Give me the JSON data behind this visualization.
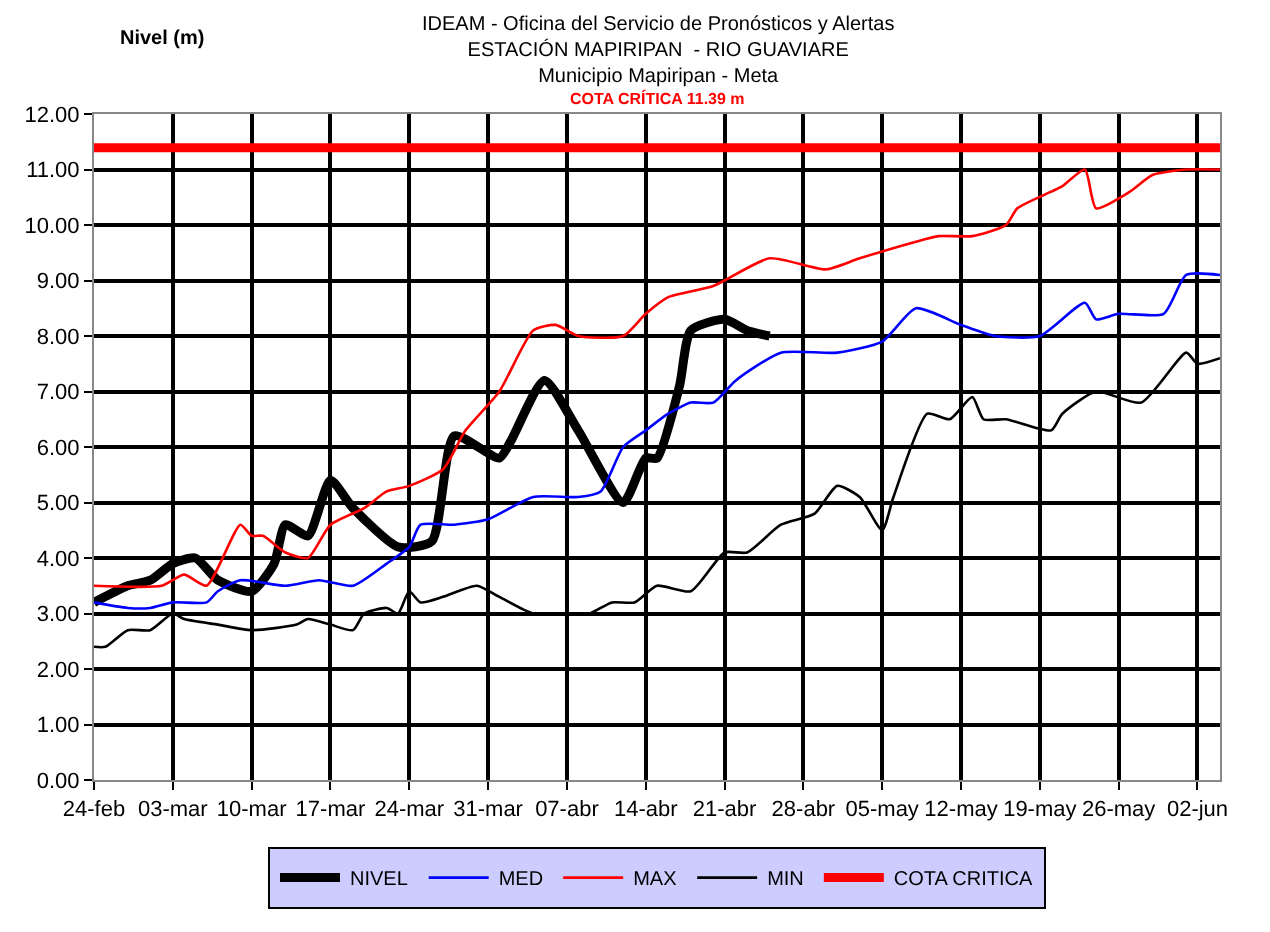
{
  "chart_data": {
    "type": "line",
    "title": "IDEAM - Oficina del Servicio de Pronósticos y Alertas",
    "subtitle": "ESTACIÓN MAPIRIPAN  - RIO GUAVIARE\nMunicipio Mapiripan - Meta",
    "ylabel": "Nivel (m)",
    "annotations": [
      "COTA CRÍTICA 11.39 m"
    ],
    "series": [
      {
        "name": "NIVEL",
        "color": "#000000",
        "x": [
          "--02-24",
          "--02-27",
          "--03-01",
          "--03-03",
          "--03-05",
          "--03-07",
          "--03-10",
          "--03-12",
          "--03-13",
          "--03-15",
          "--03-17",
          "--03-19",
          "--03-23",
          "--03-26",
          "--03-28",
          "--04-01",
          "--04-02",
          "--04-05",
          "--04-08",
          "--04-12",
          "--04-14",
          "--04-15",
          "--04-17",
          "--04-18",
          "--04-21",
          "--04-23",
          "--04-25"
        ],
        "values": [
          3.2,
          3.5,
          3.6,
          3.9,
          4.0,
          3.6,
          3.4,
          3.9,
          4.6,
          4.4,
          5.4,
          4.9,
          4.2,
          4.3,
          6.2,
          5.8,
          6.1,
          7.2,
          6.3,
          5.0,
          5.8,
          5.8,
          7.1,
          8.1,
          8.3,
          8.1,
          8.0
        ]
      },
      {
        "name": "MED",
        "color": "#0000ff",
        "x": [
          "--02-24",
          "--02-27",
          "--03-01",
          "--03-03",
          "--03-06",
          "--03-07",
          "--03-09",
          "--03-13",
          "--03-16",
          "--03-19",
          "--03-22",
          "--03-24",
          "--03-25",
          "--03-28",
          "--03-31",
          "--04-04",
          "--04-08",
          "--04-10",
          "--04-12",
          "--04-14",
          "--04-16",
          "--04-18",
          "--04-20",
          "--04-22",
          "--04-26",
          "--05-01",
          "--05-05",
          "--05-08",
          "--05-12",
          "--05-15",
          "--05-19",
          "--05-23",
          "--05-24",
          "--05-26",
          "--05-30",
          "--06-01",
          "--06-04"
        ],
        "values": [
          3.2,
          3.1,
          3.1,
          3.2,
          3.2,
          3.4,
          3.6,
          3.5,
          3.6,
          3.5,
          3.9,
          4.2,
          4.6,
          4.6,
          4.7,
          5.1,
          5.1,
          5.2,
          6.0,
          6.3,
          6.6,
          6.8,
          6.8,
          7.2,
          7.7,
          7.7,
          7.9,
          8.5,
          8.2,
          8.0,
          8.0,
          8.6,
          8.3,
          8.4,
          8.4,
          9.1,
          9.1
        ]
      },
      {
        "name": "MAX",
        "color": "#ff0000",
        "x": [
          "--02-24",
          "--03-02",
          "--03-04",
          "--03-06",
          "--03-09",
          "--03-10",
          "--03-11",
          "--03-13",
          "--03-15",
          "--03-17",
          "--03-20",
          "--03-22",
          "--03-24",
          "--03-27",
          "--03-29",
          "--04-01",
          "--04-04",
          "--04-06",
          "--04-08",
          "--04-12",
          "--04-14",
          "--04-16",
          "--04-20",
          "--04-25",
          "--04-30",
          "--05-03",
          "--05-08",
          "--05-10",
          "--05-13",
          "--05-16",
          "--05-17",
          "--05-20",
          "--05-21",
          "--05-23",
          "--05-24",
          "--05-27",
          "--05-29",
          "--06-01",
          "--06-04"
        ],
        "values": [
          3.5,
          3.5,
          3.7,
          3.5,
          4.6,
          4.4,
          4.4,
          4.1,
          4.0,
          4.6,
          4.9,
          5.2,
          5.3,
          5.6,
          6.3,
          7.0,
          8.1,
          8.2,
          8.0,
          8.0,
          8.4,
          8.7,
          8.9,
          9.4,
          9.2,
          9.4,
          9.7,
          9.8,
          9.8,
          10.0,
          10.3,
          10.6,
          10.7,
          11.0,
          10.3,
          10.6,
          10.9,
          11.0,
          11.0
        ]
      },
      {
        "name": "MIN",
        "color": "#000000",
        "x": [
          "--02-24",
          "--02-25",
          "--02-27",
          "--03-01",
          "--03-03",
          "--03-04",
          "--03-07",
          "--03-10",
          "--03-14",
          "--03-15",
          "--03-17",
          "--03-19",
          "--03-20",
          "--03-22",
          "--03-23",
          "--03-24",
          "--03-25",
          "--03-27",
          "--03-30",
          "--04-01",
          "--04-04",
          "--04-07",
          "--04-09",
          "--04-11",
          "--04-13",
          "--04-15",
          "--04-18",
          "--04-21",
          "--04-23",
          "--04-26",
          "--04-29",
          "--05-01",
          "--05-03",
          "--05-05",
          "--05-06",
          "--05-09",
          "--05-11",
          "--05-13",
          "--05-14",
          "--05-16",
          "--05-20",
          "--05-21",
          "--05-24",
          "--05-28",
          "--06-01",
          "--06-02",
          "--06-04"
        ],
        "values": [
          2.4,
          2.4,
          2.7,
          2.7,
          3.0,
          2.9,
          2.8,
          2.7,
          2.8,
          2.9,
          2.8,
          2.7,
          3.0,
          3.1,
          3.0,
          3.4,
          3.2,
          3.3,
          3.5,
          3.3,
          3.0,
          3.0,
          3.0,
          3.2,
          3.2,
          3.5,
          3.4,
          4.1,
          4.1,
          4.6,
          4.8,
          5.3,
          5.1,
          4.5,
          5.1,
          6.6,
          6.5,
          6.9,
          6.5,
          6.5,
          6.3,
          6.6,
          7.0,
          6.8,
          7.7,
          7.5,
          7.6
        ]
      }
    ],
    "ref_lines": [
      {
        "axis": "y",
        "value": 11.39,
        "label": "COTA CRITICA",
        "color": "#ff0000"
      }
    ],
    "xlim": [
      "--02-24",
      "--06-04"
    ],
    "xticks": [
      {
        "value": "--02-24",
        "label": "24-feb"
      },
      {
        "value": "--03-03",
        "label": "03-mar"
      },
      {
        "value": "--03-10",
        "label": "10-mar"
      },
      {
        "value": "--03-17",
        "label": "17-mar"
      },
      {
        "value": "--03-24",
        "label": "24-mar"
      },
      {
        "value": "--03-31",
        "label": "31-mar"
      },
      {
        "value": "--04-07",
        "label": "07-abr"
      },
      {
        "value": "--04-14",
        "label": "14-abr"
      },
      {
        "value": "--04-21",
        "label": "21-abr"
      },
      {
        "value": "--04-28",
        "label": "28-abr"
      },
      {
        "value": "--05-05",
        "label": "05-may"
      },
      {
        "value": "--05-12",
        "label": "12-may"
      },
      {
        "value": "--05-19",
        "label": "19-may"
      },
      {
        "value": "--05-26",
        "label": "26-may"
      },
      {
        "value": "--06-02",
        "label": "02-jun"
      }
    ],
    "ylim": [
      0,
      12
    ],
    "yticks": [
      {
        "value": 0,
        "label": "0.00"
      },
      {
        "value": 1,
        "label": "1.00"
      },
      {
        "value": 2,
        "label": "2.00"
      },
      {
        "value": 3,
        "label": "3.00"
      },
      {
        "value": 4,
        "label": "4.00"
      },
      {
        "value": 5,
        "label": "5.00"
      },
      {
        "value": 6,
        "label": "6.00"
      },
      {
        "value": 7,
        "label": "7.00"
      },
      {
        "value": 8,
        "label": "8.00"
      },
      {
        "value": 9,
        "label": "9.00"
      },
      {
        "value": 10,
        "label": "10.00"
      },
      {
        "value": 11,
        "label": "11.00"
      },
      {
        "value": 12,
        "label": "12.00"
      }
    ],
    "grid": true,
    "legend": "bottom"
  }
}
